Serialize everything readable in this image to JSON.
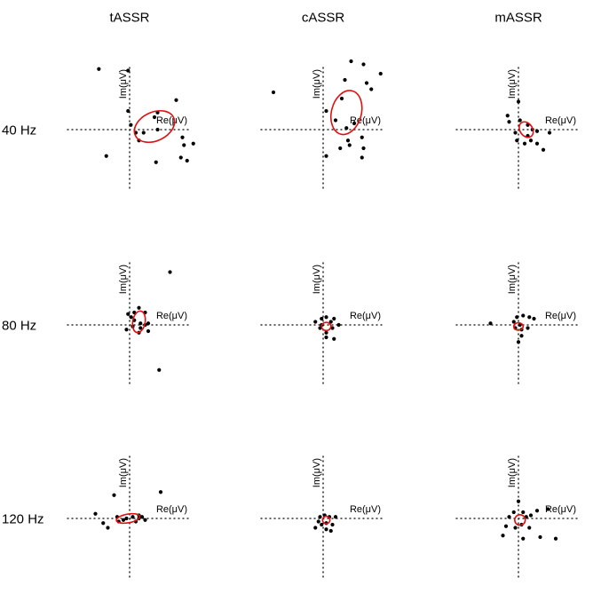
{
  "chart_data": {
    "type": "scatter",
    "columns": [
      "tASSR",
      "cASSR",
      "mASSR"
    ],
    "rows": [
      "40 Hz",
      "80 Hz",
      "120 Hz"
    ],
    "xlabel": "Re(μV)",
    "ylabel": "Im(μV)",
    "axis_range": [
      -4,
      4
    ],
    "point_color": "#000000",
    "ellipse_color": "#e01010",
    "panels": [
      {
        "column": "tASSR",
        "row": "40 Hz",
        "points": [
          [
            -0.99,
            1.95
          ],
          [
            -0.05,
            1.9
          ],
          [
            -0.05,
            0.6
          ],
          [
            0.04,
            0.15
          ],
          [
            0.2,
            -0.1
          ],
          [
            0.3,
            -0.35
          ],
          [
            0.45,
            -0.1
          ],
          [
            0.8,
            0.4
          ],
          [
            0.9,
            0.55
          ],
          [
            0.9,
            0.0
          ],
          [
            1.5,
            0.95
          ],
          [
            1.7,
            -0.25
          ],
          [
            2.05,
            -0.45
          ],
          [
            1.65,
            -0.9
          ],
          [
            1.85,
            -1.0
          ],
          [
            1.75,
            -0.5
          ],
          [
            -0.75,
            -0.85
          ],
          [
            0.85,
            -1.05
          ]
        ],
        "ellipse": {
          "cx": 0.8,
          "cy": 0.1,
          "rx": 0.68,
          "ry": 0.46,
          "angle_deg": -25
        }
      },
      {
        "column": "cASSR",
        "row": "40 Hz",
        "points": [
          [
            -1.6,
            1.2
          ],
          [
            0.1,
            0.6
          ],
          [
            0.4,
            0.3
          ],
          [
            1.0,
            0.2
          ],
          [
            0.75,
            0.05
          ],
          [
            0.8,
            -0.35
          ],
          [
            0.55,
            -0.6
          ],
          [
            0.85,
            -0.5
          ],
          [
            1.25,
            -0.25
          ],
          [
            1.3,
            -0.6
          ],
          [
            0.6,
            1.0
          ],
          [
            0.7,
            1.6
          ],
          [
            0.9,
            2.2
          ],
          [
            1.4,
            1.5
          ],
          [
            1.55,
            1.3
          ],
          [
            1.3,
            2.1
          ],
          [
            1.85,
            1.8
          ],
          [
            0.1,
            -0.85
          ],
          [
            1.25,
            -0.9
          ]
        ],
        "ellipse": {
          "cx": 0.75,
          "cy": 0.55,
          "rx": 0.48,
          "ry": 0.72,
          "angle_deg": 15
        }
      },
      {
        "column": "mASSR",
        "row": "40 Hz",
        "points": [
          [
            0.0,
            0.9
          ],
          [
            -0.35,
            0.45
          ],
          [
            0.05,
            0.3
          ],
          [
            0.3,
            0.15
          ],
          [
            0.45,
            0.0
          ],
          [
            -0.1,
            -0.1
          ],
          [
            0.3,
            -0.2
          ],
          [
            0.6,
            -0.05
          ],
          [
            1.0,
            -0.1
          ],
          [
            -0.05,
            -0.35
          ],
          [
            0.2,
            -0.45
          ],
          [
            0.4,
            -0.35
          ],
          [
            0.6,
            -0.45
          ],
          [
            0.8,
            -0.65
          ],
          [
            -0.3,
            0.25
          ]
        ],
        "ellipse": {
          "cx": 0.25,
          "cy": 0.0,
          "rx": 0.2,
          "ry": 0.27,
          "angle_deg": -35
        }
      },
      {
        "column": "tASSR",
        "row": "80 Hz",
        "points": [
          [
            -0.05,
            0.35
          ],
          [
            0.15,
            0.4
          ],
          [
            0.3,
            0.55
          ],
          [
            0.5,
            0.4
          ],
          [
            0.15,
            0.15
          ],
          [
            0.35,
            0.05
          ],
          [
            0.5,
            0.0
          ],
          [
            0.35,
            -0.1
          ],
          [
            0.6,
            -0.2
          ],
          [
            -0.1,
            -0.15
          ],
          [
            0.3,
            -0.25
          ],
          [
            0.1,
            -0.05
          ],
          [
            0.05,
            0.25
          ],
          [
            0.6,
            0.05
          ],
          [
            1.3,
            1.7
          ],
          [
            0.95,
            -1.45
          ]
        ],
        "ellipse": {
          "cx": 0.3,
          "cy": 0.1,
          "rx": 0.2,
          "ry": 0.35,
          "angle_deg": 10
        }
      },
      {
        "column": "cASSR",
        "row": "80 Hz",
        "points": [
          [
            -0.25,
            0.1
          ],
          [
            -0.05,
            0.2
          ],
          [
            0.1,
            0.25
          ],
          [
            0.35,
            0.2
          ],
          [
            0.5,
            0.0
          ],
          [
            0.3,
            -0.1
          ],
          [
            0.1,
            -0.25
          ],
          [
            -0.1,
            -0.1
          ],
          [
            0.1,
            -0.4
          ],
          [
            0.35,
            -0.45
          ],
          [
            -0.05,
            0.0
          ],
          [
            0.25,
            0.1
          ]
        ],
        "ellipse": {
          "cx": 0.1,
          "cy": -0.05,
          "rx": 0.15,
          "ry": 0.13,
          "angle_deg": 0
        }
      },
      {
        "column": "mASSR",
        "row": "80 Hz",
        "points": [
          [
            -0.9,
            0.05
          ],
          [
            -0.05,
            0.25
          ],
          [
            0.15,
            0.3
          ],
          [
            0.35,
            0.25
          ],
          [
            0.5,
            0.2
          ],
          [
            -0.1,
            -0.1
          ],
          [
            0.1,
            -0.15
          ],
          [
            0.3,
            -0.1
          ],
          [
            0.1,
            -0.35
          ],
          [
            0.0,
            -0.55
          ],
          [
            0.05,
            0.0
          ],
          [
            -0.15,
            0.1
          ]
        ],
        "ellipse": {
          "cx": 0.0,
          "cy": -0.05,
          "rx": 0.15,
          "ry": 0.12,
          "angle_deg": 0
        }
      },
      {
        "column": "tASSR",
        "row": "120 Hz",
        "points": [
          [
            -1.1,
            0.15
          ],
          [
            -0.5,
            0.75
          ],
          [
            -0.85,
            -0.15
          ],
          [
            -0.7,
            -0.3
          ],
          [
            -0.35,
            -0.1
          ],
          [
            -0.4,
            0.05
          ],
          [
            -0.1,
            0.0
          ],
          [
            0.1,
            0.05
          ],
          [
            0.3,
            0.0
          ],
          [
            0.4,
            0.05
          ],
          [
            0.5,
            -0.05
          ],
          [
            0.2,
            -0.1
          ],
          [
            -0.2,
            -0.05
          ],
          [
            1.0,
            0.85
          ],
          [
            0.3,
            0.1
          ]
        ],
        "ellipse": {
          "cx": -0.05,
          "cy": 0.0,
          "rx": 0.38,
          "ry": 0.14,
          "angle_deg": -10
        }
      },
      {
        "column": "cASSR",
        "row": "120 Hz",
        "points": [
          [
            -0.1,
            0.05
          ],
          [
            0.05,
            0.1
          ],
          [
            0.2,
            0.05
          ],
          [
            0.4,
            0.05
          ],
          [
            -0.15,
            -0.1
          ],
          [
            -0.05,
            -0.2
          ],
          [
            0.1,
            -0.15
          ],
          [
            0.3,
            -0.2
          ],
          [
            0.1,
            -0.35
          ],
          [
            0.25,
            -0.4
          ],
          [
            -0.25,
            -0.3
          ]
        ],
        "ellipse": {
          "cx": 0.1,
          "cy": -0.05,
          "rx": 0.12,
          "ry": 0.12,
          "angle_deg": 0
        }
      },
      {
        "column": "mASSR",
        "row": "120 Hz",
        "points": [
          [
            -0.15,
            0.2
          ],
          [
            0.0,
            0.55
          ],
          [
            -0.3,
            0.05
          ],
          [
            0.15,
            0.2
          ],
          [
            0.25,
            0.05
          ],
          [
            0.4,
            0.1
          ],
          [
            0.6,
            0.25
          ],
          [
            0.95,
            0.3
          ],
          [
            0.1,
            -0.2
          ],
          [
            -0.1,
            -0.3
          ],
          [
            -0.4,
            -0.25
          ],
          [
            0.35,
            -0.3
          ],
          [
            0.7,
            -0.6
          ],
          [
            1.2,
            -0.65
          ],
          [
            -0.5,
            -0.55
          ],
          [
            0.15,
            -0.65
          ]
        ],
        "ellipse": {
          "cx": 0.05,
          "cy": -0.05,
          "rx": 0.17,
          "ry": 0.17,
          "angle_deg": 0
        }
      }
    ]
  }
}
